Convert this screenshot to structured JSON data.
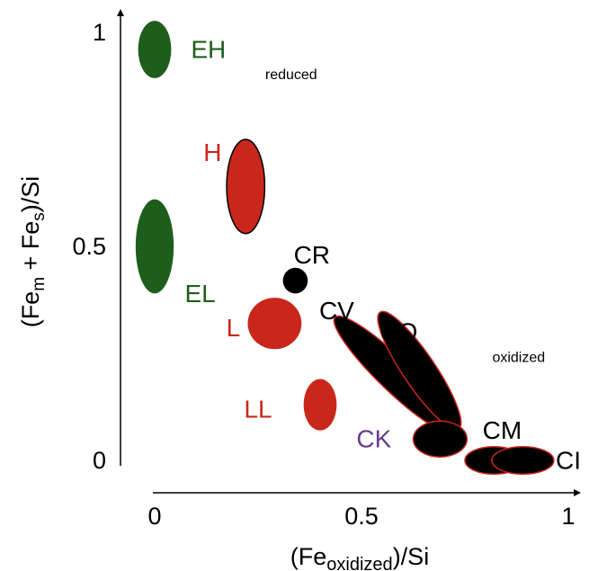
{
  "chart_data": {
    "type": "scatter",
    "xlabel": "(Fe",
    "xlabel_sub": "oxidized",
    "xlabel_tail": ")/Si",
    "ylabel_parts": [
      "(Fe",
      "m",
      " + Fe",
      "s",
      ")/Si"
    ],
    "xlim": [
      0,
      1
    ],
    "ylim": [
      0,
      1
    ],
    "x_ticks": [
      {
        "value": 0,
        "label": "0"
      },
      {
        "value": 0.5,
        "label": "0.5"
      },
      {
        "value": 1,
        "label": "1"
      }
    ],
    "y_ticks": [
      {
        "value": 0,
        "label": "0"
      },
      {
        "value": 0.5,
        "label": "0.5"
      },
      {
        "value": 1,
        "label": "1"
      }
    ],
    "annotations": [
      {
        "text": "reduced",
        "x": 0.33,
        "y": 0.9
      },
      {
        "text": "oxidized",
        "x": 0.88,
        "y": 0.24
      }
    ],
    "colors": {
      "green": "#1e5e1c",
      "red": "#c9271c",
      "black": "#000000",
      "purple": "#6a3a8c",
      "red_outline": "#c9271c"
    },
    "groups": [
      {
        "name": "EH",
        "cx": 0.0,
        "cy": 0.96,
        "rx": 0.04,
        "ry": 0.067,
        "angle": 0,
        "fill": "green",
        "stroke": "none",
        "label_color": "green",
        "label_x": 0.13,
        "label_y": 0.96
      },
      {
        "name": "EL",
        "cx": 0.0,
        "cy": 0.5,
        "rx": 0.046,
        "ry": 0.11,
        "angle": 0,
        "fill": "green",
        "stroke": "none",
        "label_color": "green",
        "label_x": 0.11,
        "label_y": 0.39
      },
      {
        "name": "H",
        "cx": 0.22,
        "cy": 0.64,
        "rx": 0.046,
        "ry": 0.11,
        "angle": 0,
        "fill": "red",
        "stroke": "black",
        "label_color": "red",
        "label_x": 0.14,
        "label_y": 0.72
      },
      {
        "name": "L",
        "cx": 0.29,
        "cy": 0.32,
        "rx": 0.065,
        "ry": 0.06,
        "angle": 0,
        "fill": "red",
        "stroke": "none",
        "label_color": "red",
        "label_x": 0.19,
        "label_y": 0.31
      },
      {
        "name": "CR",
        "cx": 0.34,
        "cy": 0.42,
        "rx": 0.03,
        "ry": 0.03,
        "angle": 0,
        "fill": "black",
        "stroke": "none",
        "label_color": "black",
        "label_x": 0.38,
        "label_y": 0.48
      },
      {
        "name": "LL",
        "cx": 0.4,
        "cy": 0.13,
        "rx": 0.04,
        "ry": 0.06,
        "angle": 0,
        "fill": "red",
        "stroke": "none",
        "label_color": "red",
        "label_x": 0.25,
        "label_y": 0.12
      },
      {
        "name": "CV",
        "cx": 0.58,
        "cy": 0.2,
        "rx": 0.2,
        "ry": 0.038,
        "angle": 44,
        "fill": "black",
        "stroke": "red_outline",
        "label_color": "black",
        "label_x": 0.44,
        "label_y": 0.35
      },
      {
        "name": "CO",
        "cx": 0.64,
        "cy": 0.21,
        "rx": 0.17,
        "ry": 0.038,
        "angle": 56,
        "fill": "black",
        "stroke": "red_outline",
        "label_color": "black",
        "label_x": 0.59,
        "label_y": 0.3
      },
      {
        "name": "CK",
        "cx": 0.69,
        "cy": 0.05,
        "rx": 0.065,
        "ry": 0.042,
        "angle": 0,
        "fill": "black",
        "stroke": "red_outline",
        "label_color": "purple",
        "label_x": 0.53,
        "label_y": 0.05
      },
      {
        "name": "CM",
        "cx": 0.82,
        "cy": 0.0,
        "rx": 0.07,
        "ry": 0.032,
        "angle": 0,
        "fill": "black",
        "stroke": "red_outline",
        "label_color": "black",
        "label_x": 0.84,
        "label_y": 0.07
      },
      {
        "name": "CI",
        "cx": 0.89,
        "cy": 0.0,
        "rx": 0.075,
        "ry": 0.032,
        "angle": 0,
        "fill": "black",
        "stroke": "red_outline",
        "label_color": "black",
        "label_x": 1.0,
        "label_y": 0.0
      }
    ]
  }
}
